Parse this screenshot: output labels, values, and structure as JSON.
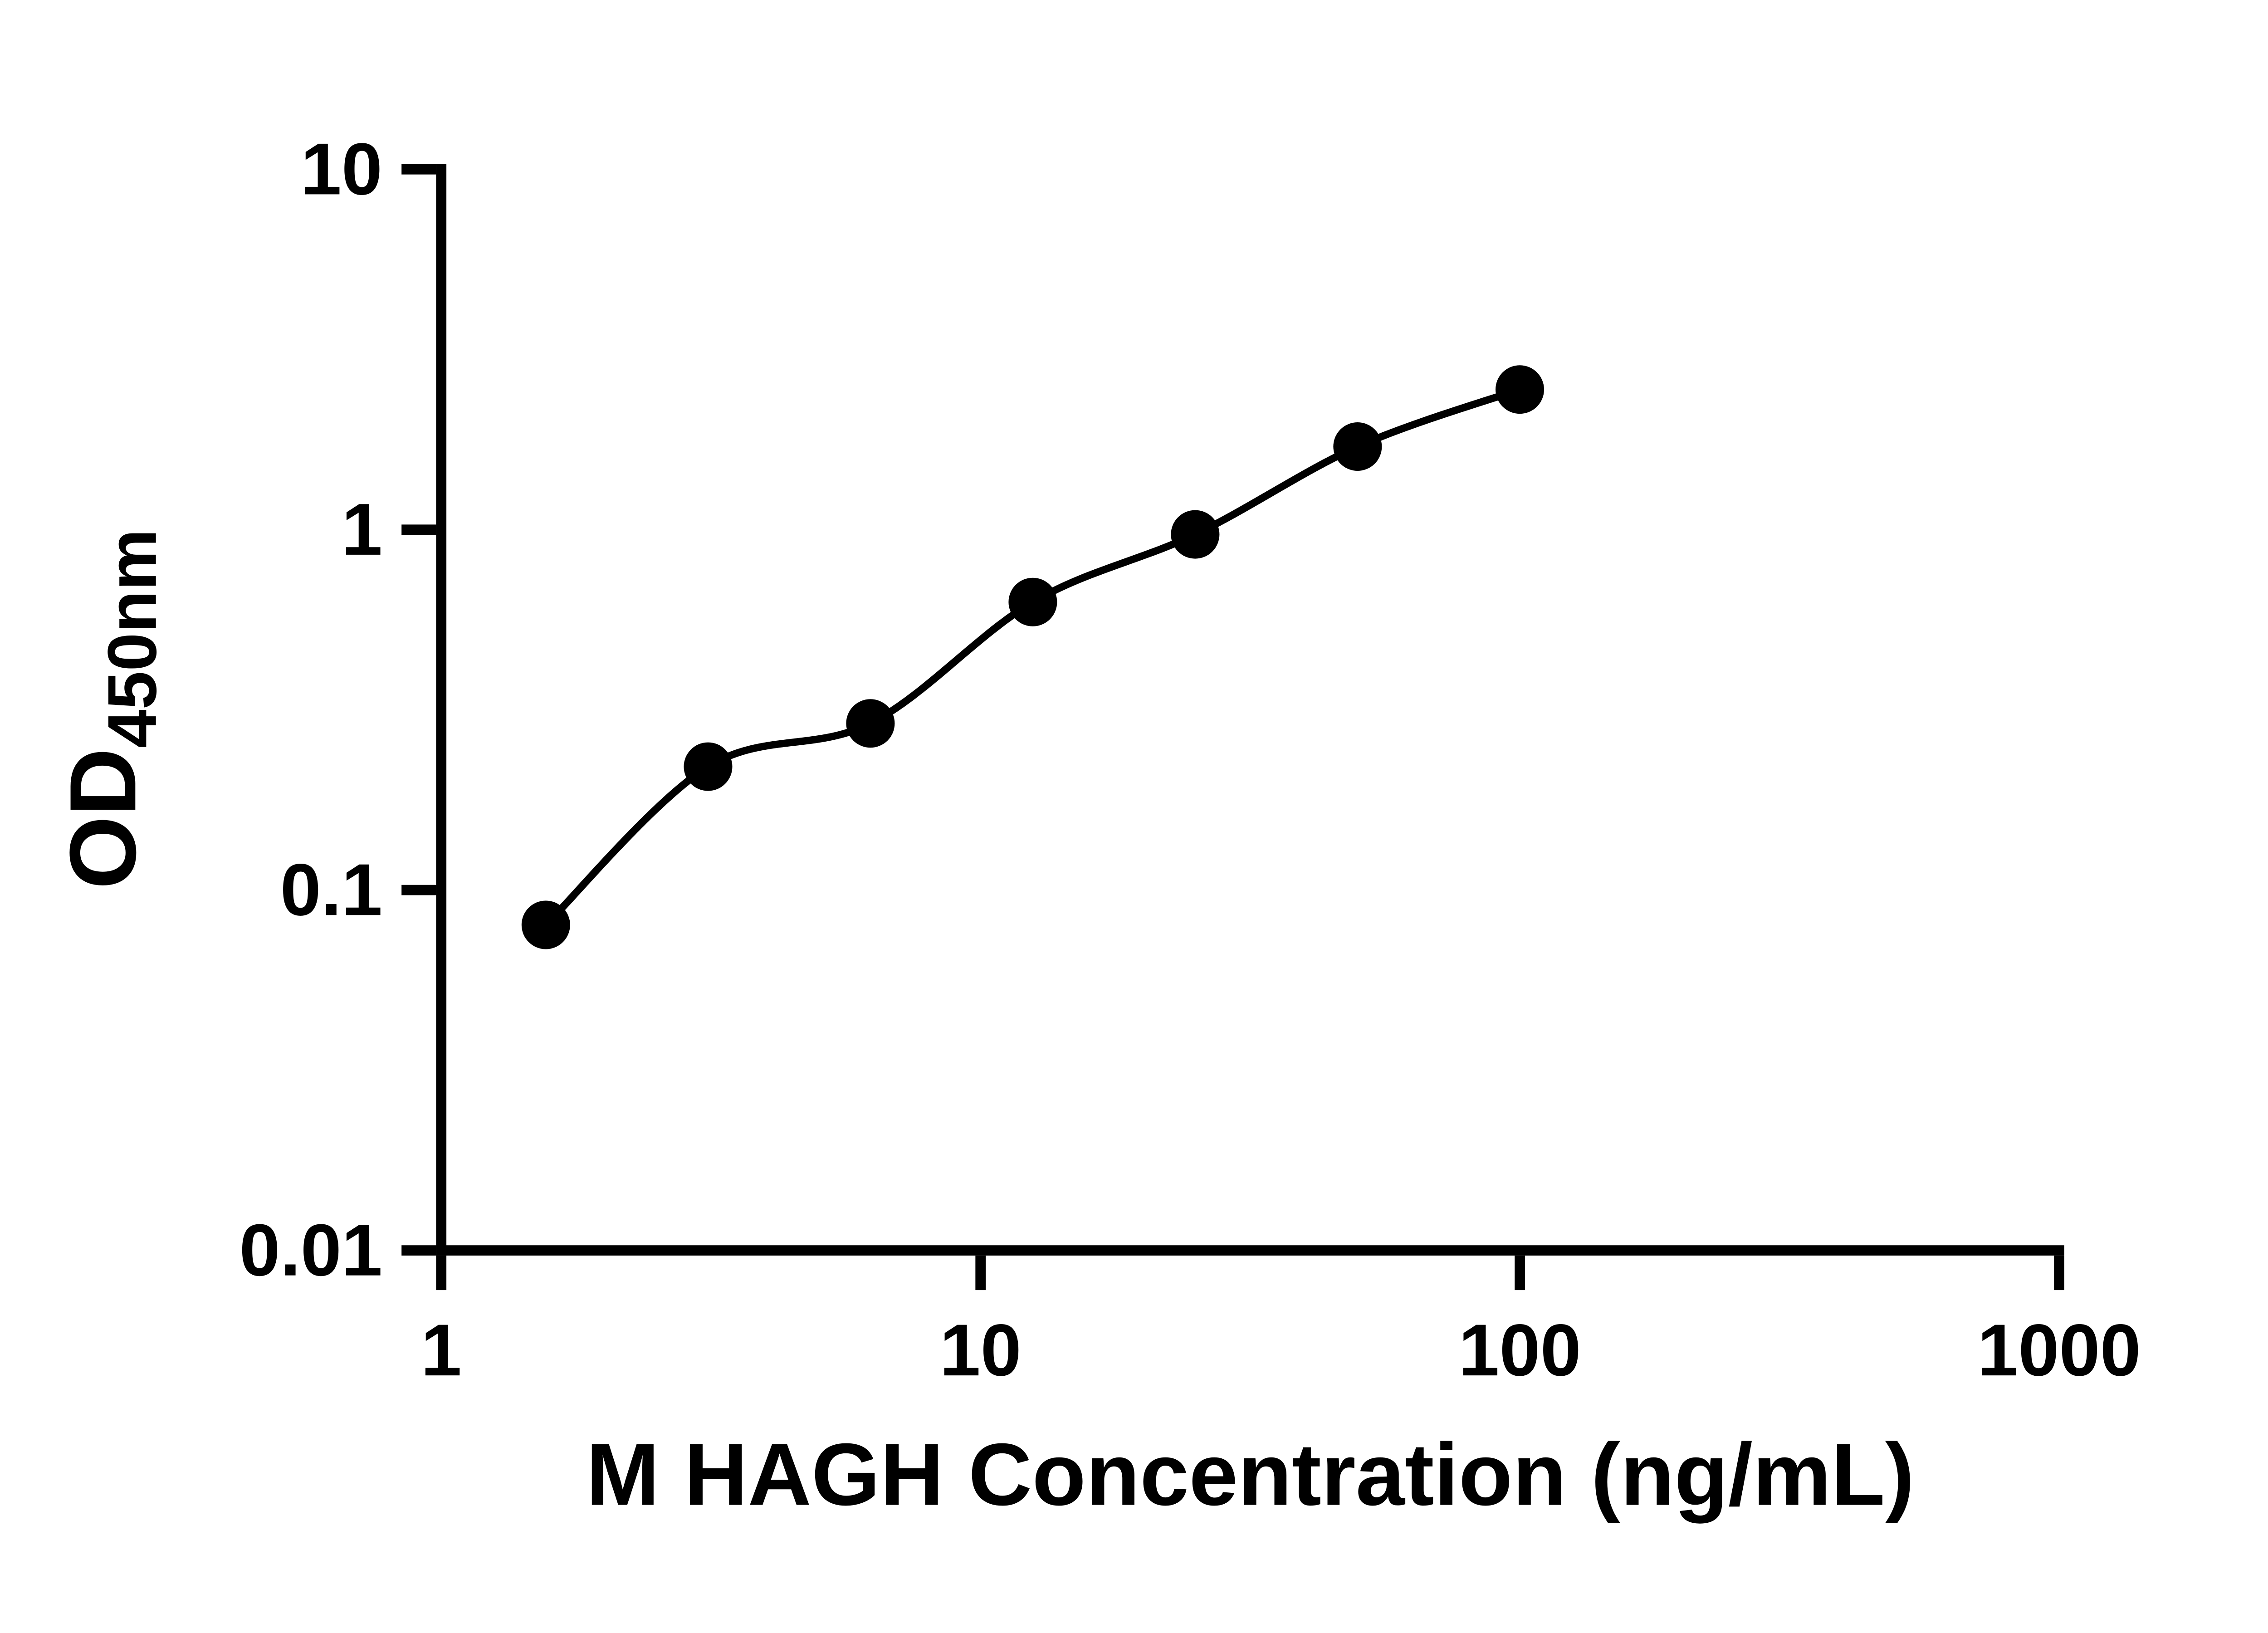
{
  "figure": {
    "background": "#ffffff",
    "axis_color": "#000000",
    "text_color": "#000000"
  },
  "chart_data": {
    "type": "scatter",
    "title": "",
    "xlabel": "M HAGH Concentration (ng/mL)",
    "ylabel_main": "OD",
    "ylabel_sub": "450nm",
    "x_scale": "log",
    "y_scale": "log",
    "xlim": [
      1,
      1000
    ],
    "ylim": [
      0.01,
      10
    ],
    "x_ticks": [
      1,
      10,
      100,
      1000
    ],
    "x_tick_labels": [
      "1",
      "10",
      "100",
      "1000"
    ],
    "y_ticks": [
      0.01,
      0.1,
      1,
      10
    ],
    "y_tick_labels": [
      "0.01",
      "0.1",
      "1",
      "10"
    ],
    "grid": false,
    "legend": false,
    "points": {
      "x": [
        1.5625,
        3.125,
        6.25,
        12.5,
        25,
        50,
        100
      ],
      "y": [
        0.08,
        0.22,
        0.29,
        0.63,
        0.97,
        1.7,
        2.45
      ]
    },
    "fit_line": true,
    "marker_color": "#000000",
    "line_color": "#000000"
  }
}
